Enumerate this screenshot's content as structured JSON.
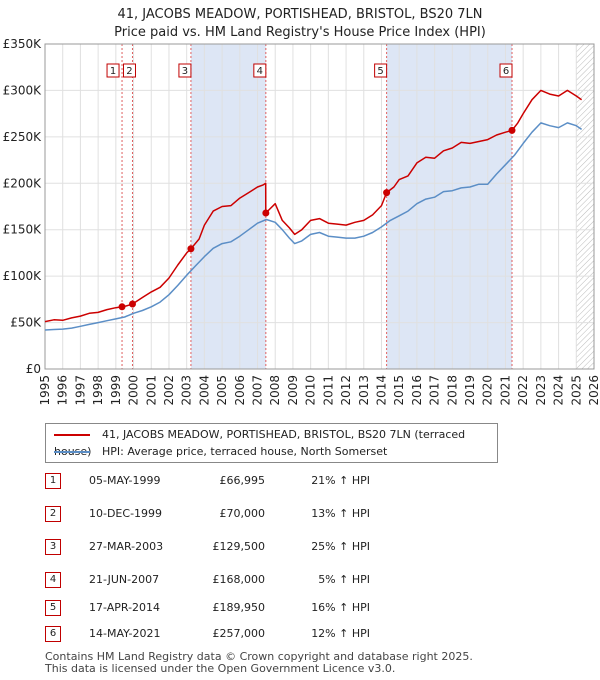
{
  "chart_data": {
    "type": "line",
    "title": "41, JACOBS MEADOW, PORTISHEAD, BRISTOL, BS20 7LN",
    "subtitle": "Price paid vs. HM Land Registry's House Price Index (HPI)",
    "xlim": [
      1995,
      2026
    ],
    "ylim": [
      0,
      350000
    ],
    "x_ticks": [
      1995,
      1996,
      1997,
      1998,
      1999,
      2000,
      2001,
      2002,
      2003,
      2004,
      2005,
      2006,
      2007,
      2008,
      2009,
      2010,
      2011,
      2012,
      2013,
      2014,
      2015,
      2016,
      2017,
      2018,
      2019,
      2020,
      2021,
      2022,
      2023,
      2024,
      2025,
      2026
    ],
    "y_ticks": [
      {
        "value": 0,
        "label": "£0"
      },
      {
        "value": 50000,
        "label": "£50K"
      },
      {
        "value": 100000,
        "label": "£100K"
      },
      {
        "value": 150000,
        "label": "£150K"
      },
      {
        "value": 200000,
        "label": "£200K"
      },
      {
        "value": 250000,
        "label": "£250K"
      },
      {
        "value": 300000,
        "label": "£300K"
      },
      {
        "value": 350000,
        "label": "£350K"
      }
    ],
    "colors": {
      "property": "#cc0000",
      "hpi": "#5b8ec6",
      "band": "#dde6f5",
      "grid": "#e0e0e0",
      "hatch": "#bbbbbb"
    },
    "shaded_periods": [
      [
        2003.24,
        2007.47
      ],
      [
        2014.29,
        2021.37
      ]
    ],
    "forecast_start": 2025.0,
    "series": [
      {
        "name": "41, JACOBS MEADOW, PORTISHEAD, BRISTOL, BS20 7LN (terraced house)",
        "key": "property",
        "x": [
          1995,
          1995.5,
          1996,
          1996.5,
          1997,
          1997.5,
          1998,
          1998.5,
          1999,
          1999.35,
          1999.6,
          1999.94,
          2000.5,
          2001,
          2001.5,
          2002,
          2002.5,
          2003,
          2003.24,
          2003.7,
          2004,
          2004.5,
          2005,
          2005.5,
          2006,
          2006.5,
          2007,
          2007.3,
          2007.46,
          2007.47,
          2008,
          2008.4,
          2008.8,
          2009.1,
          2009.5,
          2010,
          2010.5,
          2011,
          2011.5,
          2012,
          2012.5,
          2013,
          2013.5,
          2014,
          2014.29,
          2014.7,
          2015,
          2015.5,
          2016,
          2016.5,
          2017,
          2017.5,
          2018,
          2018.5,
          2019,
          2019.5,
          2020,
          2020.5,
          2021,
          2021.37,
          2021.7,
          2022,
          2022.5,
          2023,
          2023.5,
          2024,
          2024.5,
          2025,
          2025.3
        ],
        "y": [
          51000,
          53000,
          52500,
          55000,
          57000,
          60000,
          61000,
          64000,
          66000,
          66995,
          68000,
          70000,
          77000,
          83000,
          88000,
          98000,
          112000,
          125000,
          129500,
          140000,
          155000,
          170000,
          175000,
          176000,
          184000,
          190000,
          196000,
          198000,
          200000,
          168000,
          178000,
          160000,
          152000,
          145000,
          150000,
          160000,
          162000,
          157000,
          156000,
          155000,
          158000,
          160000,
          166000,
          176000,
          189950,
          196000,
          204000,
          208000,
          222000,
          228000,
          227000,
          235000,
          238000,
          244000,
          243000,
          245000,
          247000,
          252000,
          255000,
          257000,
          265000,
          275000,
          290000,
          300000,
          296000,
          294000,
          300000,
          294000,
          290000
        ]
      },
      {
        "name": "HPI: Average price, terraced house, North Somerset",
        "key": "hpi",
        "x": [
          1995,
          1995.5,
          1996,
          1996.5,
          1997,
          1997.5,
          1998,
          1998.5,
          1999,
          1999.5,
          2000,
          2000.5,
          2001,
          2001.5,
          2002,
          2002.5,
          2003,
          2003.5,
          2004,
          2004.5,
          2005,
          2005.5,
          2006,
          2006.5,
          2007,
          2007.5,
          2008,
          2008.4,
          2008.8,
          2009.1,
          2009.5,
          2010,
          2010.5,
          2011,
          2011.5,
          2012,
          2012.5,
          2013,
          2013.5,
          2014,
          2014.5,
          2015,
          2015.5,
          2016,
          2016.5,
          2017,
          2017.5,
          2018,
          2018.5,
          2019,
          2019.5,
          2020,
          2020.5,
          2021,
          2021.5,
          2022,
          2022.5,
          2023,
          2023.5,
          2024,
          2024.5,
          2025,
          2025.3
        ],
        "y": [
          42000,
          42500,
          43000,
          44000,
          46000,
          48000,
          50000,
          52000,
          54000,
          56000,
          60000,
          63000,
          67000,
          72000,
          80000,
          90000,
          101000,
          111000,
          121000,
          130000,
          135000,
          137000,
          143000,
          150000,
          157000,
          161000,
          158000,
          150000,
          141000,
          135000,
          138000,
          145000,
          147000,
          143000,
          142000,
          141000,
          141000,
          143000,
          147000,
          153000,
          160000,
          165000,
          170000,
          178000,
          183000,
          185000,
          191000,
          192000,
          195000,
          196000,
          199000,
          199000,
          210000,
          220000,
          230000,
          243000,
          255000,
          265000,
          262000,
          260000,
          265000,
          262000,
          258000
        ]
      }
    ],
    "sales": [
      {
        "label": "1",
        "x": 1999.35,
        "y": 66995
      },
      {
        "label": "2",
        "x": 1999.94,
        "y": 70000
      },
      {
        "label": "3",
        "x": 2003.24,
        "y": 129500
      },
      {
        "label": "4",
        "x": 2007.47,
        "y": 168000
      },
      {
        "label": "5",
        "x": 2014.29,
        "y": 189950
      },
      {
        "label": "6",
        "x": 2021.37,
        "y": 257000
      }
    ]
  },
  "legend": {
    "property_label": "41, JACOBS MEADOW, PORTISHEAD, BRISTOL, BS20 7LN (terraced house)",
    "hpi_label": "HPI: Average price, terraced house, North Somerset"
  },
  "transactions": [
    {
      "num": "1",
      "date": "05-MAY-1999",
      "price": "£66,995",
      "hpi": "21% ↑ HPI"
    },
    {
      "num": "2",
      "date": "10-DEC-1999",
      "price": "£70,000",
      "hpi": "13% ↑ HPI"
    },
    {
      "num": "3",
      "date": "27-MAR-2003",
      "price": "£129,500",
      "hpi": "25% ↑ HPI"
    },
    {
      "num": "4",
      "date": "21-JUN-2007",
      "price": "£168,000",
      "hpi": "5% ↑ HPI"
    },
    {
      "num": "5",
      "date": "17-APR-2014",
      "price": "£189,950",
      "hpi": "16% ↑ HPI"
    },
    {
      "num": "6",
      "date": "14-MAY-2021",
      "price": "£257,000",
      "hpi": "12% ↑ HPI"
    }
  ],
  "footer": {
    "line1": "Contains HM Land Registry data © Crown copyright and database right 2025.",
    "line2": "This data is licensed under the Open Government Licence v3.0."
  }
}
